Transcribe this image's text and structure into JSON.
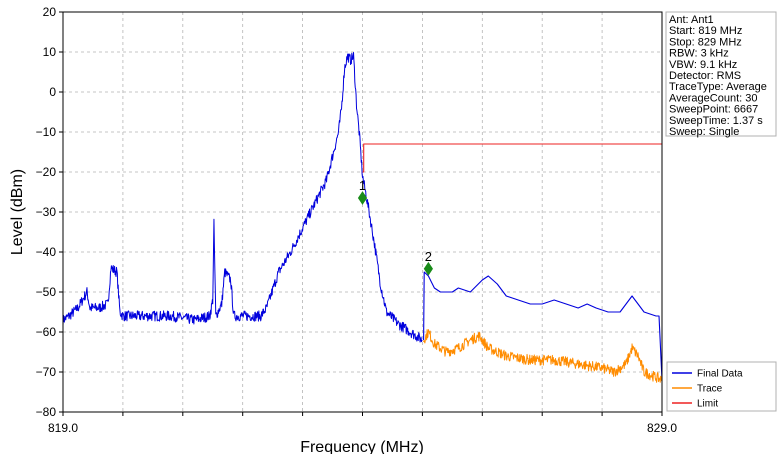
{
  "chart_data": {
    "type": "line",
    "xlabel": "Frequency (MHz)",
    "ylabel": "Level (dBm)",
    "xlim": [
      819.0,
      829.0
    ],
    "ylim": [
      -80,
      20
    ],
    "x_tick_labels": [
      "819.0",
      "829.0"
    ],
    "x_minor_ticks": [
      820,
      821,
      822,
      823,
      824,
      825,
      826,
      827,
      828
    ],
    "y_ticks": [
      -80,
      -70,
      -60,
      -50,
      -40,
      -30,
      -20,
      -10,
      0,
      10,
      20
    ],
    "grid": true,
    "legend_position": "bottom-right",
    "series": [
      {
        "name": "Final Data",
        "color": "#0000dd",
        "noisy": true,
        "points": [
          [
            819.0,
            -57
          ],
          [
            819.1,
            -56
          ],
          [
            819.25,
            -54
          ],
          [
            819.4,
            -50
          ],
          [
            819.45,
            -54
          ],
          [
            819.6,
            -54
          ],
          [
            819.75,
            -53
          ],
          [
            819.8,
            -44
          ],
          [
            819.9,
            -45
          ],
          [
            819.95,
            -55
          ],
          [
            820.0,
            -56
          ],
          [
            820.4,
            -56
          ],
          [
            820.8,
            -56
          ],
          [
            821.2,
            -57
          ],
          [
            821.45,
            -56
          ],
          [
            821.5,
            -52
          ],
          [
            821.52,
            -33
          ],
          [
            821.55,
            -56
          ],
          [
            821.65,
            -53
          ],
          [
            821.7,
            -45
          ],
          [
            821.8,
            -47
          ],
          [
            821.85,
            -56
          ],
          [
            822.0,
            -56
          ],
          [
            822.3,
            -56
          ],
          [
            822.4,
            -54
          ],
          [
            822.6,
            -45
          ],
          [
            822.8,
            -40
          ],
          [
            823.0,
            -34
          ],
          [
            823.2,
            -28
          ],
          [
            823.4,
            -22
          ],
          [
            823.5,
            -16
          ],
          [
            823.6,
            -10
          ],
          [
            823.65,
            -4
          ],
          [
            823.7,
            6
          ],
          [
            823.75,
            9
          ],
          [
            823.8,
            8
          ],
          [
            823.85,
            9
          ],
          [
            823.9,
            -3
          ],
          [
            823.95,
            -11
          ],
          [
            824.0,
            -21
          ],
          [
            824.1,
            -29
          ],
          [
            824.2,
            -38
          ],
          [
            824.3,
            -48
          ],
          [
            824.4,
            -55
          ],
          [
            824.6,
            -58
          ],
          [
            824.8,
            -60
          ],
          [
            825.0,
            -62
          ]
        ]
      },
      {
        "name": "Final Data",
        "color": "#0000dd",
        "noisy": false,
        "points": [
          [
            825.02,
            -62
          ],
          [
            825.03,
            -45
          ],
          [
            825.1,
            -46
          ],
          [
            825.2,
            -49
          ],
          [
            825.3,
            -50
          ],
          [
            825.5,
            -50
          ],
          [
            825.6,
            -49
          ],
          [
            825.8,
            -50
          ],
          [
            826.0,
            -47
          ],
          [
            826.1,
            -46
          ],
          [
            826.25,
            -48
          ],
          [
            826.4,
            -51
          ],
          [
            826.6,
            -52
          ],
          [
            826.8,
            -53
          ],
          [
            827.0,
            -53
          ],
          [
            827.2,
            -52
          ],
          [
            827.4,
            -53
          ],
          [
            827.6,
            -54
          ],
          [
            827.75,
            -53
          ],
          [
            827.9,
            -54
          ],
          [
            828.1,
            -55
          ],
          [
            828.3,
            -55
          ],
          [
            828.5,
            -51
          ],
          [
            828.6,
            -53
          ],
          [
            828.7,
            -55
          ],
          [
            828.9,
            -56
          ],
          [
            828.95,
            -56
          ],
          [
            829.0,
            -72
          ]
        ]
      },
      {
        "name": "Trace",
        "color": "#ff8c00",
        "noisy": true,
        "points": [
          [
            825.02,
            -62
          ],
          [
            825.1,
            -60
          ],
          [
            825.2,
            -63
          ],
          [
            825.4,
            -65
          ],
          [
            825.6,
            -64
          ],
          [
            825.8,
            -62
          ],
          [
            825.95,
            -61
          ],
          [
            826.1,
            -64
          ],
          [
            826.4,
            -66
          ],
          [
            826.8,
            -67
          ],
          [
            827.2,
            -67
          ],
          [
            827.6,
            -68
          ],
          [
            828.0,
            -69
          ],
          [
            828.2,
            -70
          ],
          [
            828.4,
            -68
          ],
          [
            828.5,
            -64
          ],
          [
            828.6,
            -66
          ],
          [
            828.7,
            -70
          ],
          [
            829.0,
            -72
          ]
        ]
      },
      {
        "name": "Limit",
        "color": "#ee2222",
        "noisy": false,
        "points": [
          [
            824.0,
            -20
          ],
          [
            824.02,
            -20
          ],
          [
            824.02,
            -13
          ],
          [
            829.0,
            -13
          ]
        ]
      }
    ],
    "markers": [
      {
        "label": "1",
        "x": 824.0,
        "y": -26.5,
        "color": "#1a8c1a"
      },
      {
        "label": "2",
        "x": 825.1,
        "y": -44.2,
        "color": "#1a8c1a"
      }
    ],
    "legend": [
      "Final Data",
      "Trace",
      "Limit"
    ]
  },
  "info_box": {
    "lines": [
      "Ant: Ant1",
      "Start: 819 MHz",
      "Stop: 829 MHz",
      "RBW: 3 kHz",
      "VBW: 9.1 kHz",
      "Detector: RMS",
      "TraceType: Average",
      "AverageCount: 30",
      "SweepPoint: 6667",
      "SweepTime: 1.37 s",
      "Sweep: Single"
    ]
  },
  "legend": {
    "items": [
      {
        "label": "Final Data",
        "color": "#0000dd"
      },
      {
        "label": "Trace",
        "color": "#ff8c00"
      },
      {
        "label": "Limit",
        "color": "#ee2222"
      }
    ]
  }
}
